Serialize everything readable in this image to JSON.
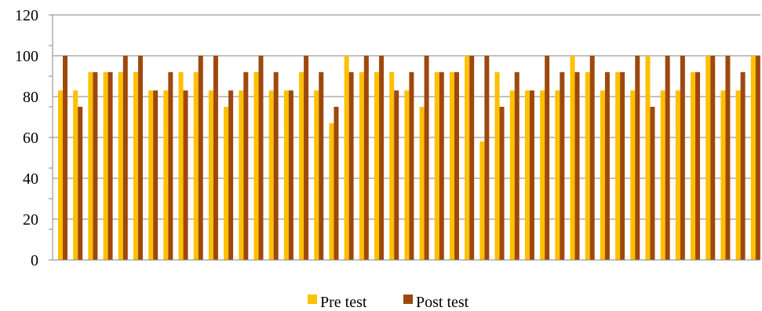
{
  "chart_data": {
    "type": "bar",
    "title": "",
    "xlabel": "",
    "ylabel": "",
    "ylim": [
      0,
      120
    ],
    "yticks": [
      0,
      20,
      40,
      60,
      80,
      100,
      120
    ],
    "grid": "horizontal",
    "legend_position": "bottom",
    "colors": {
      "pre": "#FFC000",
      "post": "#9E480E",
      "grid": "#868686",
      "axis": "#868686"
    },
    "series": [
      {
        "name": "Pre test",
        "values": [
          83,
          83,
          92,
          92,
          92,
          92,
          83,
          83,
          92,
          92,
          83,
          75,
          83,
          92,
          83,
          83,
          92,
          83,
          67,
          100,
          92,
          92,
          92,
          83,
          75,
          92,
          92,
          100,
          58,
          92,
          83,
          83,
          83,
          83,
          100,
          92,
          83,
          92,
          83,
          100,
          83,
          83,
          92,
          100,
          83,
          83,
          100
        ]
      },
      {
        "name": "Post test",
        "values": [
          100,
          75,
          92,
          92,
          100,
          100,
          83,
          92,
          83,
          100,
          100,
          83,
          92,
          100,
          92,
          83,
          100,
          92,
          75,
          92,
          100,
          100,
          83,
          92,
          100,
          92,
          92,
          100,
          100,
          75,
          92,
          83,
          100,
          92,
          92,
          100,
          92,
          92,
          100,
          75,
          100,
          100,
          92,
          100,
          100,
          92,
          100
        ]
      }
    ]
  }
}
